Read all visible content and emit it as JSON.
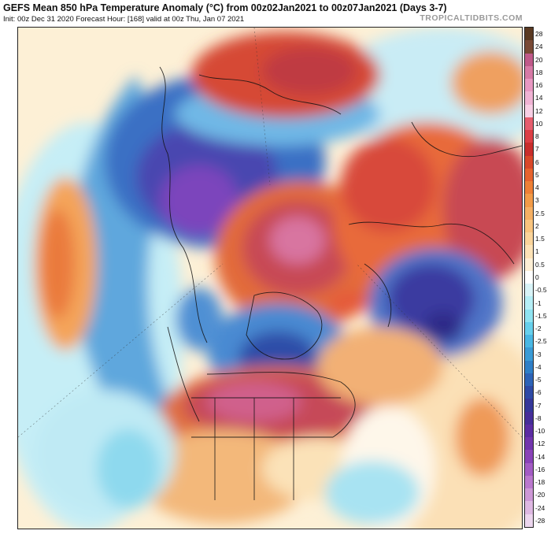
{
  "header": {
    "title": "GEFS Mean 850 hPa Temperature Anomaly (°C) from 00z02Jan2021 to 00z07Jan2021 (Days 3-7)",
    "subtitle": "Init: 00z Dec 31 2020   Forecast Hour: [168]   valid at 00z Thu, Jan 07 2021",
    "brand": "TROPICALTIDBITS.COM"
  },
  "colorbar": {
    "labels": [
      "28",
      "24",
      "20",
      "18",
      "16",
      "14",
      "12",
      "10",
      "8",
      "7",
      "6",
      "5",
      "4",
      "3",
      "2.5",
      "2",
      "1.5",
      "1",
      "0.5",
      "0",
      "-0.5",
      "-1",
      "-1.5",
      "-2",
      "-2.5",
      "-3",
      "-4",
      "-5",
      "-6",
      "-7",
      "-8",
      "-10",
      "-12",
      "-14",
      "-16",
      "-18",
      "-20",
      "-24",
      "-28"
    ],
    "colors": [
      "#5a3a22",
      "#7a4a36",
      "#c05a8a",
      "#d77aa6",
      "#e898c2",
      "#f0b3d4",
      "#f7cfe4",
      "#e65e6e",
      "#dc3f45",
      "#c92e2c",
      "#d9482a",
      "#e6632e",
      "#ee8036",
      "#f29b48",
      "#f5b064",
      "#f8c47e",
      "#fad49a",
      "#fce2b6",
      "#fdefd5",
      "#ffffff",
      "#d8f3f7",
      "#b5eef6",
      "#8fe3f1",
      "#67d0ec",
      "#49b7e3",
      "#3a9bd6",
      "#2f7fc7",
      "#2d63b7",
      "#2e4aa6",
      "#35389a",
      "#462e99",
      "#5c2da3",
      "#7236ad",
      "#8a43b8",
      "#a35cc4",
      "#ba78cd",
      "#cd98d6",
      "#deb8e2",
      "#ecd6ee"
    ]
  },
  "map": {
    "region": "northern-hemisphere-polar-projection"
  }
}
